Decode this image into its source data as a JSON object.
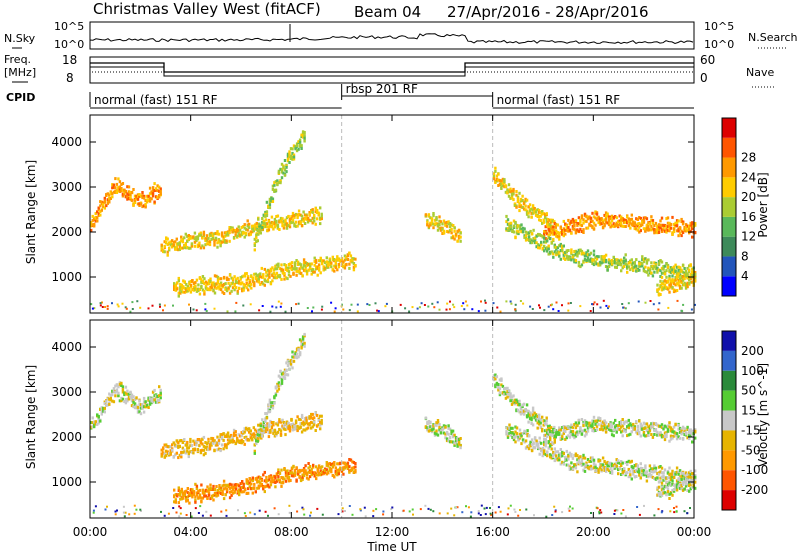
{
  "header": {
    "title": "Christmas Valley West (fitACF)",
    "beam": "Beam 04",
    "date_range": "27/Apr/2016 - 28/Apr/2016"
  },
  "top_panels": {
    "nsky_label": "N.Sky",
    "nsky_ticks": [
      "10^5",
      "10^0"
    ],
    "nsearch_label": "N.Search",
    "nsearch_ticks": [
      "10^5",
      "10^0"
    ],
    "freq_label_1": "Freq.",
    "freq_label_2": "[MHz]",
    "freq_ticks": [
      "18",
      "8"
    ],
    "nave_label": "Nave",
    "nave_ticks": [
      "60",
      "0"
    ],
    "cpid_label": "CPID",
    "modes": [
      {
        "label": "normal (fast) 151 RF",
        "start_hour": 0,
        "end_hour": 10
      },
      {
        "label": "rbsp 201 RF",
        "start_hour": 10,
        "end_hour": 16
      },
      {
        "label": "normal (fast) 151 RF",
        "start_hour": 16,
        "end_hour": 24
      }
    ]
  },
  "x_axis": {
    "title": "Time UT",
    "ticks": [
      "00:00",
      "04:00",
      "08:00",
      "12:00",
      "16:00",
      "20:00",
      "00:00"
    ],
    "range_hours": [
      0,
      24
    ]
  },
  "colors": {
    "power": [
      "#0000ff",
      "#2255bb",
      "#3d8a5a",
      "#59b85a",
      "#aacc33",
      "#ffcc00",
      "#ff9900",
      "#ff5500",
      "#dd0000"
    ],
    "velocity": [
      "#1010aa",
      "#3366cc",
      "#2a8a3a",
      "#55cc33",
      "#c8c8c8",
      "#e6b400",
      "#ff9900",
      "#ff5500",
      "#dd0000"
    ]
  },
  "chart_data": [
    {
      "type": "heatmap",
      "quantity": "Power",
      "ylabel": "Slant Range [km]",
      "ylim": [
        200,
        4600
      ],
      "y_ticks": [
        1000,
        2000,
        3000,
        4000
      ],
      "colorbar": {
        "label": "Power [dB]",
        "ticks": [
          "4",
          "8",
          "12",
          "16",
          "20",
          "24",
          "28"
        ],
        "range": [
          0,
          30
        ]
      },
      "bands": [
        {
          "x": [
            0.0,
            1.0,
            2.0,
            2.8
          ],
          "y": [
            2200,
            3100,
            2700,
            3000
          ],
          "value": 22
        },
        {
          "x": [
            2.8,
            5.0,
            7.0,
            9.2
          ],
          "y": [
            1700,
            1900,
            2200,
            2400
          ],
          "value": 20
        },
        {
          "x": [
            3.3,
            6.0,
            8.0,
            10.5
          ],
          "y": [
            800,
            900,
            1200,
            1400
          ],
          "value": 20
        },
        {
          "x": [
            6.5,
            7.5,
            8.5
          ],
          "y": [
            1800,
            3300,
            4200
          ],
          "value": 16
        },
        {
          "x": [
            13.3,
            14.0,
            14.7
          ],
          "y": [
            2300,
            2200,
            1900
          ],
          "value": 18
        },
        {
          "x": [
            16.0,
            17.0,
            18.5
          ],
          "y": [
            3300,
            2700,
            2100
          ],
          "value": 20
        },
        {
          "x": [
            18.0,
            20.0,
            22.0,
            24.0
          ],
          "y": [
            2000,
            2300,
            2200,
            2100
          ],
          "value": 24
        },
        {
          "x": [
            16.5,
            19.0,
            21.5,
            24.0
          ],
          "y": [
            2200,
            1500,
            1300,
            1100
          ],
          "value": 14
        },
        {
          "x": [
            22.5,
            24.0
          ],
          "y": [
            800,
            1000
          ],
          "value": 20
        }
      ]
    },
    {
      "type": "heatmap",
      "quantity": "Velocity",
      "ylabel": "Slant Range [km]",
      "ylim": [
        200,
        4600
      ],
      "y_ticks": [
        1000,
        2000,
        3000,
        4000
      ],
      "colorbar": {
        "label": "Velocity [m s^-1]",
        "ticks": [
          "200",
          "100",
          "50",
          "15",
          "-15",
          "-50",
          "-100",
          "-200"
        ],
        "range": [
          -250,
          250
        ]
      },
      "bands": [
        {
          "x": [
            0.0,
            1.0,
            2.0,
            2.8
          ],
          "y": [
            2200,
            3100,
            2700,
            3000
          ],
          "value": 0
        },
        {
          "x": [
            2.8,
            5.0,
            7.0,
            9.2
          ],
          "y": [
            1700,
            1900,
            2200,
            2400
          ],
          "value": -40
        },
        {
          "x": [
            3.3,
            6.0,
            8.0,
            10.5
          ],
          "y": [
            700,
            900,
            1200,
            1400
          ],
          "value": -90
        },
        {
          "x": [
            6.5,
            7.5,
            8.5
          ],
          "y": [
            1800,
            3300,
            4200
          ],
          "value": 0
        },
        {
          "x": [
            13.3,
            14.0,
            14.7
          ],
          "y": [
            2300,
            2200,
            1900
          ],
          "value": 0
        },
        {
          "x": [
            16.0,
            17.0,
            18.5
          ],
          "y": [
            3300,
            2700,
            2100
          ],
          "value": 0
        },
        {
          "x": [
            18.0,
            20.0,
            22.0,
            24.0
          ],
          "y": [
            2000,
            2300,
            2200,
            2100
          ],
          "value": 0
        },
        {
          "x": [
            16.5,
            19.0,
            21.5,
            24.0
          ],
          "y": [
            2200,
            1500,
            1300,
            1100
          ],
          "value": 10
        },
        {
          "x": [
            22.5,
            24.0
          ],
          "y": [
            800,
            1000
          ],
          "value": 0
        }
      ]
    }
  ]
}
